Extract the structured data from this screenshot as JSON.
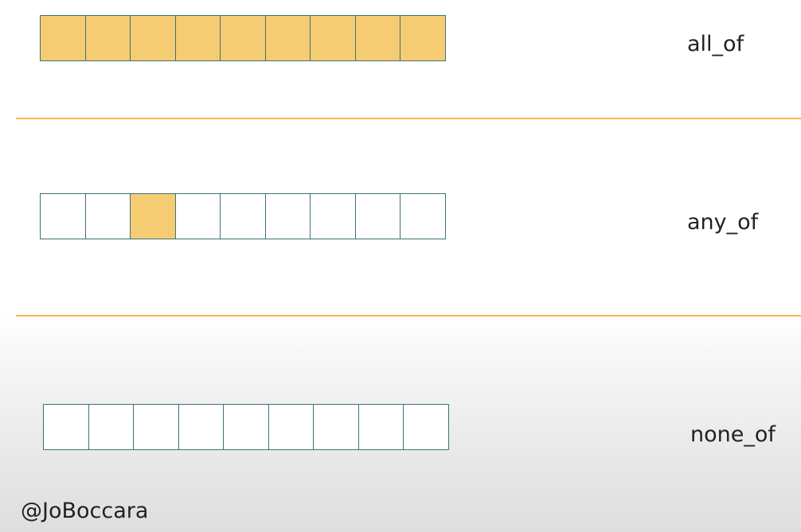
{
  "rows": [
    {
      "label": "all_of",
      "cells": [
        true,
        true,
        true,
        true,
        true,
        true,
        true,
        true,
        true
      ]
    },
    {
      "label": "any_of",
      "cells": [
        false,
        false,
        true,
        false,
        false,
        false,
        false,
        false,
        false
      ]
    },
    {
      "label": "none_of",
      "cells": [
        false,
        false,
        false,
        false,
        false,
        false,
        false,
        false,
        false
      ]
    }
  ],
  "handle": "@JoBoccara",
  "colors": {
    "filled": "#f5cc72",
    "border": "#3d7377",
    "divider": "#f0ba4c"
  }
}
